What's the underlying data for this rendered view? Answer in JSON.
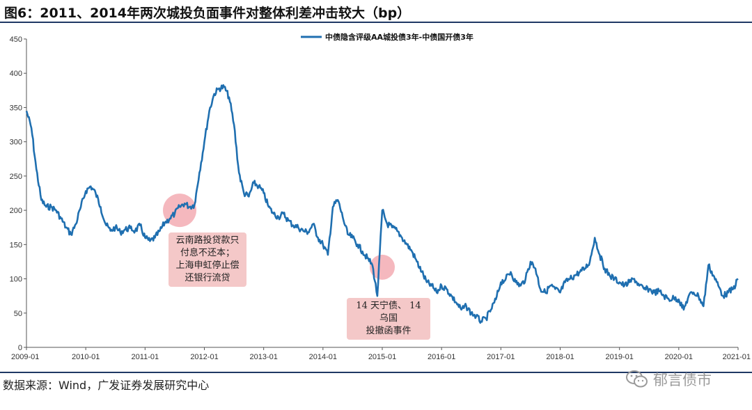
{
  "title": "图6：2011、2014年两次城投负面事件对整体利差冲击较大（bp）",
  "source": "数据来源：Wind，广发证券发展研究中心",
  "watermark": {
    "text": "郁言债市",
    "icon": "wechat-icon"
  },
  "colors": {
    "series": "#1f6fb0",
    "highlight": "#f2a0a8",
    "annotation_bg": "#f4c8c8",
    "rule": "#1f3864"
  },
  "annotations": [
    {
      "lines": [
        "云南路投贷款只",
        "付息不还本；",
        "上海申虹停止偿",
        "还银行流贷"
      ],
      "x": "2011-08"
    },
    {
      "lines": [
        "14 天宁债、 14 乌国",
        "投撤函事件"
      ],
      "x": "2015-01"
    }
  ],
  "chart_data": {
    "type": "line",
    "title": "",
    "xlabel": "",
    "ylabel": "",
    "ylim": [
      0,
      450
    ],
    "yticks": [
      0,
      50,
      100,
      150,
      200,
      250,
      300,
      350,
      400,
      450
    ],
    "xlim": [
      "2009-01",
      "2021-01"
    ],
    "xticks": [
      "2009-01",
      "2010-01",
      "2011-01",
      "2012-01",
      "2013-01",
      "2014-01",
      "2015-01",
      "2016-01",
      "2017-01",
      "2018-01",
      "2019-01",
      "2020-01",
      "2021-01"
    ],
    "grid": false,
    "legend": "top-center",
    "series": [
      {
        "name": "中债隐含评级AA城投债3年-中债国开债3年",
        "x": [
          "2009-01",
          "2009-02",
          "2009-03",
          "2009-04",
          "2009-05",
          "2009-06",
          "2009-07",
          "2009-08",
          "2009-09",
          "2009-10",
          "2009-11",
          "2009-12",
          "2010-01",
          "2010-02",
          "2010-03",
          "2010-04",
          "2010-05",
          "2010-06",
          "2010-07",
          "2010-08",
          "2010-09",
          "2010-10",
          "2010-11",
          "2010-12",
          "2011-01",
          "2011-02",
          "2011-03",
          "2011-04",
          "2011-05",
          "2011-06",
          "2011-07",
          "2011-08",
          "2011-09",
          "2011-10",
          "2011-11",
          "2011-12",
          "2012-01",
          "2012-02",
          "2012-03",
          "2012-04",
          "2012-05",
          "2012-06",
          "2012-07",
          "2012-08",
          "2012-09",
          "2012-10",
          "2012-11",
          "2012-12",
          "2013-01",
          "2013-02",
          "2013-03",
          "2013-04",
          "2013-05",
          "2013-06",
          "2013-07",
          "2013-08",
          "2013-09",
          "2013-10",
          "2013-11",
          "2013-12",
          "2014-01",
          "2014-02",
          "2014-03",
          "2014-04",
          "2014-05",
          "2014-06",
          "2014-07",
          "2014-08",
          "2014-09",
          "2014-10",
          "2014-11",
          "2014-12",
          "2015-01",
          "2015-02",
          "2015-03",
          "2015-04",
          "2015-05",
          "2015-06",
          "2015-07",
          "2015-08",
          "2015-09",
          "2015-10",
          "2015-11",
          "2015-12",
          "2016-01",
          "2016-02",
          "2016-03",
          "2016-04",
          "2016-05",
          "2016-06",
          "2016-07",
          "2016-08",
          "2016-09",
          "2016-10",
          "2016-11",
          "2016-12",
          "2017-01",
          "2017-02",
          "2017-03",
          "2017-04",
          "2017-05",
          "2017-06",
          "2017-07",
          "2017-08",
          "2017-09",
          "2017-10",
          "2017-11",
          "2017-12",
          "2018-01",
          "2018-02",
          "2018-03",
          "2018-04",
          "2018-05",
          "2018-06",
          "2018-07",
          "2018-08",
          "2018-09",
          "2018-10",
          "2018-11",
          "2018-12",
          "2019-01",
          "2019-02",
          "2019-03",
          "2019-04",
          "2019-05",
          "2019-06",
          "2019-07",
          "2019-08",
          "2019-09",
          "2019-10",
          "2019-11",
          "2019-12",
          "2020-01",
          "2020-02",
          "2020-03",
          "2020-04",
          "2020-05",
          "2020-06",
          "2020-07",
          "2020-08",
          "2020-09",
          "2020-10",
          "2020-11",
          "2020-12",
          "2021-01"
        ],
        "values": [
          345,
          320,
          260,
          215,
          205,
          205,
          200,
          188,
          175,
          165,
          180,
          205,
          228,
          235,
          225,
          205,
          180,
          170,
          175,
          168,
          172,
          174,
          170,
          178,
          160,
          155,
          160,
          170,
          182,
          188,
          195,
          205,
          210,
          205,
          208,
          255,
          300,
          345,
          370,
          378,
          380,
          365,
          325,
          255,
          225,
          220,
          240,
          235,
          225,
          205,
          195,
          190,
          195,
          185,
          178,
          175,
          170,
          168,
          180,
          160,
          150,
          135,
          205,
          215,
          190,
          165,
          160,
          150,
          140,
          130,
          120,
          75,
          200,
          180,
          175,
          170,
          160,
          150,
          140,
          125,
          110,
          95,
          90,
          80,
          90,
          85,
          75,
          65,
          55,
          60,
          50,
          45,
          38,
          42,
          55,
          70,
          95,
          100,
          110,
          95,
          90,
          100,
          125,
          115,
          85,
          80,
          90,
          85,
          80,
          95,
          100,
          105,
          110,
          115,
          125,
          160,
          135,
          115,
          105,
          100,
          95,
          90,
          95,
          100,
          90,
          85,
          85,
          80,
          82,
          75,
          70,
          72,
          70,
          55,
          75,
          80,
          75,
          60,
          120,
          105,
          90,
          75,
          80,
          85,
          100
        ]
      }
    ]
  }
}
